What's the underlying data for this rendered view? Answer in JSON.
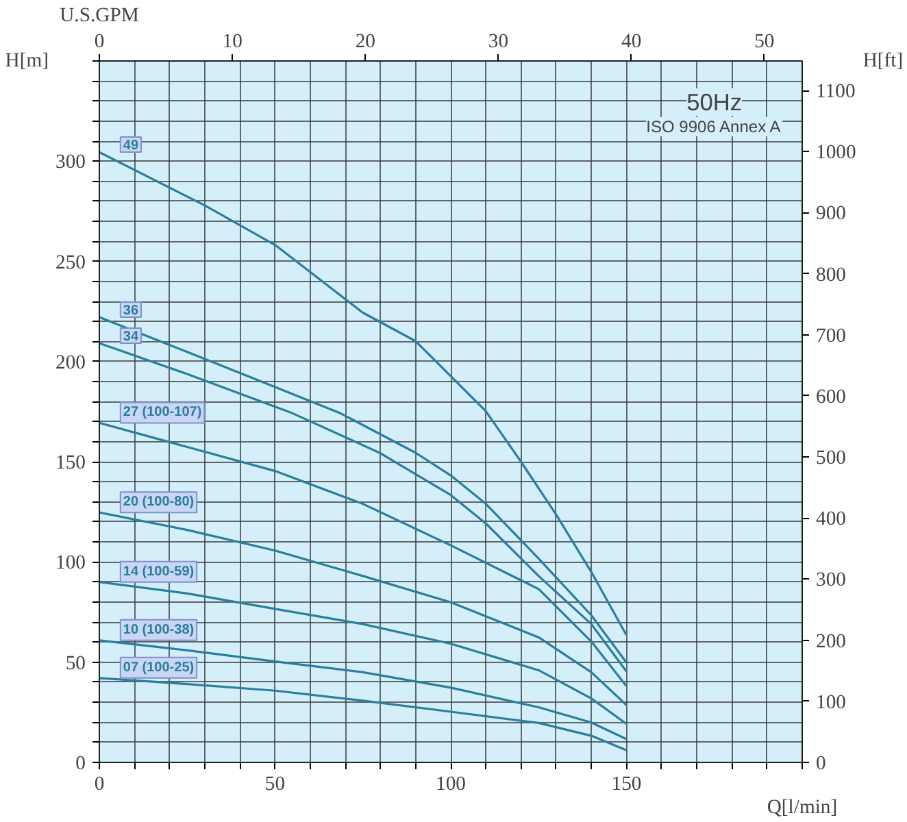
{
  "chart_data": {
    "type": "line",
    "xlabel": "Q[l/min]",
    "ylabel": "H[m]",
    "y2label": "H[ft]",
    "x2label": "U.S.GPM",
    "annotations": [
      "50Hz",
      "ISO 9906 Annex A"
    ],
    "x": [
      0,
      25,
      50,
      75,
      100,
      125,
      140,
      150
    ],
    "series": [
      {
        "name": "49",
        "color": "#2b7f9c",
        "x": [
          0,
          30,
          50,
          75,
          90,
          100,
          110,
          120,
          130,
          140,
          150
        ],
        "values": [
          304.5,
          277.9,
          258.2,
          224.4,
          210.2,
          192.7,
          175.2,
          150,
          123.6,
          95,
          63.5
        ]
      },
      {
        "name": "36",
        "color": "#2b7f9c",
        "x": [
          0,
          25,
          50,
          68.6,
          90,
          100,
          110,
          125,
          140,
          150
        ],
        "values": [
          222.2,
          204.8,
          187.3,
          174.2,
          154.5,
          143.2,
          129,
          101.7,
          73.4,
          49.8
        ]
      },
      {
        "name": "34",
        "color": "#2b7f9c",
        "x": [
          0,
          25,
          55,
          79.7,
          100,
          110,
          125,
          140,
          150
        ],
        "values": [
          209.2,
          193.8,
          174.2,
          154.5,
          133.4,
          119.2,
          93,
          69,
          45.4
        ]
      },
      {
        "name": "27 (100-107)",
        "color": "#2b7f9c",
        "values": [
          169.4,
          157.4,
          145.4,
          129,
          108.3,
          86.5,
          60.3,
          38
        ]
      },
      {
        "name": "20 (100-80)",
        "color": "#2b7f9c",
        "values": [
          124.7,
          116,
          105.7,
          93,
          79.9,
          62.4,
          45,
          28.6
        ]
      },
      {
        "name": "14 (100-59)",
        "color": "#2b7f9c",
        "values": [
          90,
          84.3,
          76.6,
          69,
          59.2,
          46,
          31.9,
          19.2
        ]
      },
      {
        "name": "10 (100-38)",
        "color": "#2b7f9c",
        "values": [
          60.9,
          55.9,
          50.4,
          45,
          37.3,
          27.5,
          19.9,
          11.6
        ]
      },
      {
        "name": "07 (100-25)",
        "color": "#2b7f9c",
        "values": [
          42.1,
          39.1,
          35.8,
          30.8,
          25.3,
          19.7,
          13.3,
          6.1
        ]
      }
    ],
    "xlim": [
      0,
      200
    ],
    "ylim": [
      0,
      350
    ],
    "y2lim": [
      0,
      1148.3
    ],
    "x2lim": [
      0,
      52.84
    ],
    "xticks": [
      0,
      {
        "value": 10,
        "label": null
      },
      {
        "value": 20,
        "label": null
      },
      {
        "value": 30,
        "label": null
      },
      {
        "value": 40,
        "label": null
      },
      50,
      {
        "value": 60,
        "label": null
      },
      {
        "value": 70,
        "label": null
      },
      {
        "value": 80,
        "label": null
      },
      {
        "value": 90,
        "label": null
      },
      100,
      {
        "value": 110,
        "label": null
      },
      {
        "value": 120,
        "label": null
      },
      {
        "value": 130,
        "label": null
      },
      {
        "value": 140,
        "label": null
      },
      150,
      {
        "value": 160,
        "label": null
      },
      {
        "value": 170,
        "label": null
      },
      {
        "value": 180,
        "label": null
      },
      {
        "value": 190,
        "label": null
      },
      {
        "value": 200,
        "label": null
      }
    ],
    "yticks": [
      0,
      {
        "value": 10,
        "label": null
      },
      {
        "value": 20,
        "label": null
      },
      {
        "value": 30,
        "label": null
      },
      {
        "value": 40,
        "label": null
      },
      50,
      {
        "value": 60,
        "label": null
      },
      {
        "value": 70,
        "label": null
      },
      {
        "value": 80,
        "label": null
      },
      {
        "value": 90,
        "label": null
      },
      100,
      {
        "value": 110,
        "label": null
      },
      {
        "value": 120,
        "label": null
      },
      {
        "value": 130,
        "label": null
      },
      {
        "value": 140,
        "label": null
      },
      150,
      {
        "value": 160,
        "label": null
      },
      {
        "value": 170,
        "label": null
      },
      {
        "value": 180,
        "label": null
      },
      {
        "value": 190,
        "label": null
      },
      200,
      {
        "value": 210,
        "label": null
      },
      {
        "value": 220,
        "label": null
      },
      {
        "value": 230,
        "label": null
      },
      {
        "value": 240,
        "label": null
      },
      250,
      {
        "value": 260,
        "label": null
      },
      {
        "value": 270,
        "label": null
      },
      {
        "value": 280,
        "label": null
      },
      {
        "value": 290,
        "label": null
      },
      300,
      {
        "value": 310,
        "label": null
      },
      {
        "value": 320,
        "label": null
      },
      {
        "value": 330,
        "label": null
      },
      {
        "value": 340,
        "label": null
      },
      {
        "value": 350,
        "label": null
      }
    ],
    "y2ticks": [
      0,
      100,
      200,
      300,
      400,
      500,
      600,
      700,
      800,
      900,
      1000,
      1100
    ],
    "x2ticks": [
      0,
      10,
      20,
      30,
      40,
      50
    ],
    "grid": true,
    "marker": "none",
    "line_style": "solid"
  }
}
